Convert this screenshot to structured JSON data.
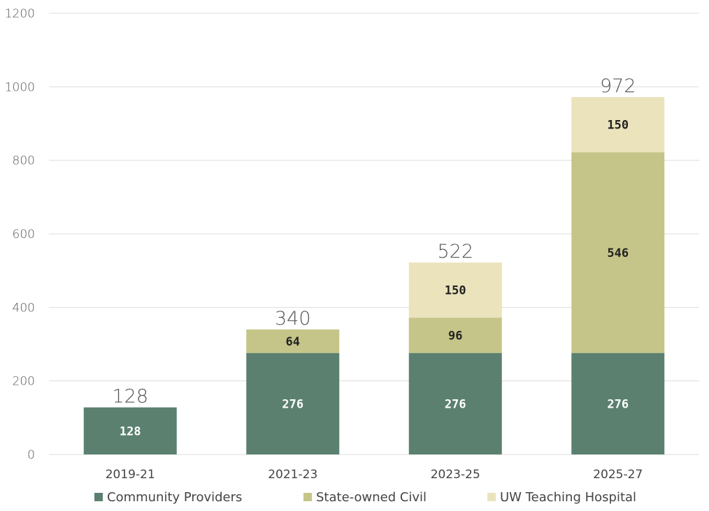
{
  "chart_data": {
    "type": "bar",
    "stacked": true,
    "categories": [
      "2019-21",
      "2021-23",
      "2023-25",
      "2025-27"
    ],
    "series": [
      {
        "name": "Community Providers",
        "values": [
          128,
          276,
          276,
          276
        ],
        "color": "#5b8070",
        "label_color": "#ffffff"
      },
      {
        "name": "State-owned Civil",
        "values": [
          0,
          64,
          96,
          546
        ],
        "color": "#c5c589",
        "label_color": "#222222"
      },
      {
        "name": "UW Teaching Hospital",
        "values": [
          0,
          0,
          150,
          150
        ],
        "color": "#ebe3bc",
        "label_color": "#222222"
      }
    ],
    "totals": [
      128,
      340,
      522,
      972
    ],
    "ylim": [
      0,
      1200
    ],
    "yticks": [
      0,
      200,
      400,
      600,
      800,
      1000,
      1200
    ],
    "grid": true,
    "legend_position": "bottom",
    "title": "",
    "xlabel": "",
    "ylabel": ""
  }
}
